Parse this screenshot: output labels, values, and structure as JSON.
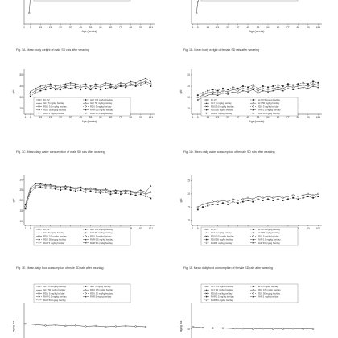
{
  "page": {
    "title": ""
  },
  "chart_data": [
    {
      "id": "fig1a",
      "type": "line",
      "caption": "Fig. 1A. Mean body weight of male SD rats after weaning",
      "xlabel": "Age (weeks)",
      "ylabel": "",
      "x_ticks": [
        "0",
        "5",
        "13",
        "21",
        "29",
        "37",
        "45",
        "53",
        "61",
        "69",
        "77",
        "85",
        "93",
        "101"
      ],
      "y_ticks": [],
      "legend": [
        "DI-UV",
        "GLY 0.5 mg/kg bw/day",
        "GLY 5 mg/kg bw/day",
        "GLY 50 mg/kg bw/day",
        "RDU 0.5 mg/kg bw/day",
        "RDU 5 mg/kg bw/day",
        "RDU 50 mg/kg bw/day",
        "RAR 0.5 mg/kg bw/day",
        "RAR 5 mg/kg bw/day",
        "RAR 50 mg/kg bw/day"
      ],
      "grid": false,
      "series": [
        {
          "name": "DI-UV",
          "x": [
            4,
            5,
            7
          ],
          "y": [
            80,
            200,
            290
          ]
        }
      ]
    },
    {
      "id": "fig1b",
      "type": "line",
      "caption": "Fig. 1B. Mean body weight of female SD rats after weaning",
      "xlabel": "Age (weeks)",
      "ylabel": "",
      "x_ticks": [
        "1",
        "5",
        "13",
        "21",
        "29",
        "37",
        "45",
        "53",
        "61",
        "69",
        "77",
        "85",
        "93",
        "101"
      ],
      "y_ticks": [],
      "legend": [
        "DI-UV",
        "GLY 0.5 mg/kg bw/day",
        "GLY 5 mg/kg bw/day",
        "GLY 50 mg/kg bw/day",
        "RDU 0.5 mg/kg bw/day",
        "RDU 5 mg/kg bw/day",
        "RDU 50 mg/kg bw/day",
        "RAR 0.5 mg/kg bw/day",
        "RAR 5 mg/kg bw/day",
        "RAR 50 mg/kg bw/day"
      ],
      "grid": false,
      "series": [
        {
          "name": "DI-UV",
          "x": [
            4,
            5,
            7
          ],
          "y": [
            80,
            160,
            220
          ]
        }
      ]
    },
    {
      "id": "fig1c",
      "type": "line",
      "caption": "Fig. 1C. Mean daily water consumption of male SD rats after weaning",
      "xlabel": "Age (weeks)",
      "ylabel": "g/d",
      "x_ticks": [
        "1",
        "5",
        "13",
        "21",
        "29",
        "37",
        "45",
        "53",
        "61",
        "69",
        "77",
        "85",
        "93",
        "101"
      ],
      "y_ticks": [
        "20",
        "30",
        "40",
        "50"
      ],
      "ylim": [
        15,
        55
      ],
      "legend": [
        "DI-UV",
        "GLY 0.5 mg/kg bw/day",
        "GLY 5 mg/kg bw/day",
        "GLY 50 mg/kg bw/day",
        "RDU 0.5 mg/kg bw/day",
        "RDU 5 mg/kg bw/day",
        "RDU 50 mg/kg bw/day",
        "RAR 0.5 mg/kg bw/day",
        "RAR 5 mg/kg bw/day",
        "RAR 50 mg/kg bw/day"
      ],
      "grid": false,
      "series": [
        {
          "x": [
            5,
            9,
            13,
            17,
            21,
            25,
            29,
            33,
            37,
            41,
            45,
            49,
            53,
            57,
            61,
            65,
            69,
            73,
            77,
            81,
            85,
            89,
            93,
            97,
            101
          ],
          "y": [
            33,
            36,
            38,
            39,
            40,
            38,
            39,
            40,
            41,
            40,
            39,
            40,
            38,
            40,
            39,
            41,
            40,
            39,
            41,
            40,
            42,
            41,
            43,
            44,
            42
          ]
        },
        {
          "x": [
            5,
            9,
            13,
            17,
            21,
            25,
            29,
            33,
            37,
            41,
            45,
            49,
            53,
            57,
            61,
            65,
            69,
            73,
            77,
            81,
            85,
            89,
            93,
            97,
            101
          ],
          "y": [
            31,
            34,
            36,
            37,
            38,
            37,
            37,
            39,
            38,
            39,
            37,
            38,
            37,
            38,
            37,
            38,
            39,
            38,
            40,
            39,
            41,
            40,
            41,
            43,
            40
          ]
        },
        {
          "x": [
            5,
            9,
            13,
            17,
            21,
            25,
            29,
            33,
            37,
            41,
            45,
            49,
            53,
            57,
            61,
            65,
            69,
            73,
            77,
            81,
            85,
            89,
            93,
            97,
            101
          ],
          "y": [
            35,
            38,
            40,
            41,
            42,
            40,
            41,
            42,
            43,
            42,
            41,
            42,
            40,
            42,
            41,
            43,
            42,
            41,
            43,
            42,
            44,
            43,
            45,
            47,
            44
          ]
        }
      ]
    },
    {
      "id": "fig1d",
      "type": "line",
      "caption": "Fig. 1D. Mean daily water consumption of female SD rats after weaning",
      "xlabel": "Age (weeks)",
      "ylabel": "g/d",
      "x_ticks": [
        "1",
        "5",
        "13",
        "21",
        "29",
        "37",
        "45",
        "53",
        "61",
        "69",
        "77",
        "85",
        "93",
        "101"
      ],
      "y_ticks": [
        "20",
        "30",
        "40",
        "50"
      ],
      "ylim": [
        15,
        55
      ],
      "legend": [
        "DI-UV",
        "GLY 0.5 mg/kg bw/day",
        "GLY 5 mg/kg bw/day",
        "GLY 50 mg/kg bw/day",
        "RDU 0.5 mg/kg bw/day",
        "RDU 5 mg/kg bw/day",
        "RDU 50 mg/kg bw/day",
        "RAR 0.5 mg/kg bw/day",
        "RAR 5 mg/kg bw/day",
        "RAR 50 mg/kg bw/day"
      ],
      "grid": false,
      "series": [
        {
          "x": [
            5,
            9,
            13,
            17,
            21,
            25,
            29,
            33,
            37,
            41,
            45,
            49,
            53,
            57,
            61,
            65,
            69,
            73,
            77,
            81,
            85,
            89,
            93,
            97,
            101
          ],
          "y": [
            30,
            32,
            34,
            35,
            34,
            36,
            35,
            37,
            36,
            38,
            37,
            39,
            36,
            38,
            37,
            38,
            39,
            38,
            40,
            39,
            40,
            41,
            40,
            42,
            41
          ]
        },
        {
          "x": [
            5,
            9,
            13,
            17,
            21,
            25,
            29,
            33,
            37,
            41,
            45,
            49,
            53,
            57,
            61,
            65,
            69,
            73,
            77,
            81,
            85,
            89,
            93,
            97,
            101
          ],
          "y": [
            32,
            34,
            36,
            37,
            36,
            38,
            37,
            39,
            38,
            40,
            39,
            41,
            38,
            40,
            39,
            40,
            41,
            40,
            42,
            41,
            42,
            43,
            42,
            44,
            43
          ]
        },
        {
          "x": [
            5,
            9,
            13,
            17,
            21,
            25,
            29,
            33,
            37,
            41,
            45,
            49,
            53,
            57,
            61,
            65,
            69,
            73,
            77,
            81,
            85,
            89,
            93,
            97,
            101
          ],
          "y": [
            28,
            30,
            32,
            33,
            32,
            34,
            33,
            35,
            34,
            36,
            35,
            37,
            34,
            36,
            35,
            36,
            37,
            36,
            38,
            37,
            38,
            39,
            38,
            40,
            39
          ]
        }
      ]
    },
    {
      "id": "fig1e",
      "type": "line",
      "caption": "Fig. 1E. Mean daily food consumption of male SD rats after weaning",
      "xlabel": "Age (weeks)",
      "ylabel": "g/d",
      "x_ticks": [
        "1",
        "5",
        "13",
        "21",
        "29",
        "37",
        "45",
        "53",
        "61",
        "69",
        "77",
        "85",
        "93",
        "101"
      ],
      "y_ticks": [
        "10",
        "15",
        "20",
        "25",
        "30"
      ],
      "ylim": [
        8,
        32
      ],
      "legend": [
        "DI-UV",
        "GLY 0.5 mg/kg bw/day",
        "GLY 5 mg/kg bw/day",
        "GLY 50 mg/kg bw/day",
        "RDU 0.5 mg/kg bw/day",
        "RDU 5 mg/kg bw/day",
        "RDU 50 mg/kg bw/day",
        "RAR 0.5 mg/kg bw/day",
        "RAR 5 mg/kg bw/day",
        "RAR 50 mg/kg bw/day"
      ],
      "grid": false,
      "series": [
        {
          "x": [
            1,
            5,
            9,
            13,
            17,
            21,
            25,
            29,
            33,
            37,
            41,
            45,
            49,
            53,
            57,
            61,
            65,
            69,
            73,
            77,
            81,
            85,
            89,
            93,
            97,
            101
          ],
          "y": [
            17,
            25,
            27,
            27.5,
            27,
            27,
            26.5,
            26,
            26.5,
            26,
            25.5,
            26,
            25,
            25.5,
            25,
            24.5,
            25,
            24,
            24.5,
            24,
            24.5,
            24,
            23.5,
            24,
            23,
            24
          ]
        },
        {
          "x": [
            1,
            5,
            9,
            13,
            17,
            21,
            25,
            29,
            33,
            37,
            41,
            45,
            49,
            53,
            57,
            61,
            65,
            69,
            73,
            77,
            81,
            85,
            89,
            93,
            97,
            101
          ],
          "y": [
            16,
            24,
            26,
            26.5,
            26,
            26,
            25.5,
            25,
            25.5,
            25,
            24.5,
            25,
            24,
            24.5,
            24,
            23.5,
            24,
            23,
            23.5,
            23,
            23.5,
            23,
            22.5,
            23,
            22,
            21
          ]
        },
        {
          "x": [
            1,
            5,
            9,
            13,
            17,
            21,
            25,
            29,
            33,
            37,
            41,
            45,
            49,
            53,
            57,
            61,
            65,
            69,
            73,
            77,
            81,
            85,
            89,
            93,
            97,
            101
          ],
          "y": [
            18,
            26,
            28,
            28,
            27.5,
            27.5,
            27,
            26.5,
            27,
            26.5,
            26,
            26.5,
            25.5,
            26,
            25.5,
            25,
            25.5,
            24.5,
            25,
            24.5,
            25,
            24.5,
            24,
            25,
            24,
            27
          ]
        }
      ]
    },
    {
      "id": "fig1f",
      "type": "line",
      "caption": "Fig. 1F. Mean daily food consumption of female SD rats after weaning",
      "xlabel": "Age (weeks)",
      "ylabel": "g/d",
      "x_ticks": [
        "1",
        "5",
        "13",
        "21",
        "29",
        "37",
        "45",
        "53",
        "61",
        "69",
        "77",
        "85",
        "93",
        "101"
      ],
      "y_ticks": [
        "10",
        "15",
        "20",
        "25"
      ],
      "ylim": [
        8,
        27
      ],
      "legend": [
        "DI-UV",
        "GLY 0.5 mg/kg bw/day",
        "GLY 5 mg/kg bw/day",
        "GLY 50 mg/kg bw/day",
        "RDU 0.5 mg/kg bw/day",
        "RDU 5 mg/kg bw/day",
        "RDU 50 mg/kg bw/day",
        "RAR 0.5 mg/kg bw/day",
        "RAR 5 mg/kg bw/day",
        "RAR 50 mg/kg bw/day"
      ],
      "grid": false,
      "series": [
        {
          "x": [
            5,
            9,
            13,
            17,
            21,
            25,
            29,
            33,
            37,
            41,
            45,
            49,
            53,
            57,
            61,
            65,
            69,
            73,
            77,
            81,
            85,
            89,
            93,
            97,
            101
          ],
          "y": [
            15,
            16,
            16.5,
            17,
            17,
            17.5,
            17,
            18,
            17.5,
            18,
            18.5,
            18,
            19,
            18.5,
            19,
            18.5,
            19,
            18.5,
            19,
            19.5,
            19,
            19.5,
            20,
            19.5,
            20
          ]
        },
        {
          "x": [
            5,
            9,
            13,
            17,
            21,
            25,
            29,
            33,
            37,
            41,
            45,
            49,
            53,
            57,
            61,
            65,
            69,
            73,
            77,
            81,
            85,
            89,
            93,
            97,
            101
          ],
          "y": [
            14,
            15,
            15.5,
            16,
            16,
            16.5,
            16,
            17,
            16.5,
            17,
            17.5,
            17,
            18,
            17.5,
            18,
            17.5,
            18,
            17.5,
            18,
            18.5,
            18,
            18.5,
            19,
            18.5,
            19
          ]
        }
      ]
    },
    {
      "id": "fig1g",
      "type": "line",
      "caption": "",
      "xlabel": "",
      "ylabel": "mg/kg bw",
      "x_ticks": [],
      "y_ticks": [],
      "ylim": [
        0,
        110
      ],
      "legend": [
        "GLY 0.5 mg/kg bw/day",
        "GLY 5 mg/kg bw/day",
        "GLY 50 mg/kg bw/day",
        "RDU 0.5 mg/kg bw/day",
        "RDU 5 mg/kg bw/day",
        "RDU 50 mg/kg bw/day",
        "RAR 0.5 mg/kg bw/day",
        "RAR 5 mg/kg bw/day",
        "RAR 50 mg/kg bw/day"
      ],
      "grid": false,
      "series": [
        {
          "x": [
            1,
            9,
            17,
            25,
            33,
            41,
            49,
            57,
            65,
            73,
            81,
            89,
            97
          ],
          "y": [
            62,
            60,
            58,
            59,
            57,
            58,
            56,
            57,
            55,
            56,
            57,
            56,
            55
          ]
        },
        {
          "x": [
            1,
            9,
            17,
            25,
            33,
            41,
            49,
            57,
            65,
            73,
            81,
            89,
            97
          ],
          "y": [
            6,
            6,
            5.5,
            5.5,
            5.5,
            5,
            5,
            5,
            5,
            5,
            5,
            5,
            5
          ]
        }
      ]
    },
    {
      "id": "fig1h",
      "type": "line",
      "caption": "",
      "xlabel": "",
      "ylabel": "mg/kg bw",
      "x_ticks": [],
      "y_ticks": [
        "50",
        "5"
      ],
      "ylim": [
        0,
        110
      ],
      "legend": [
        "GLY 0.5 mg/kg bw/day",
        "GLY 5 mg/kg bw/day",
        "GLY 50 mg/kg bw/day",
        "RDU 0.5 mg/kg bw/day",
        "RDU 5 mg/kg bw/day",
        "RDU 50 mg/kg bw/day",
        "RAR 0.5 mg/kg bw/day",
        "RAR 5 mg/kg bw/day",
        "RAR 50 mg/kg bw/day"
      ],
      "grid": false,
      "series": [
        {
          "x": [
            1,
            9,
            17,
            25,
            33,
            41,
            49,
            57,
            65,
            73,
            81,
            89,
            97
          ],
          "y": [
            55,
            53,
            52,
            52,
            51,
            51,
            50,
            51,
            50,
            50,
            51,
            50,
            50
          ]
        },
        {
          "x": [
            1,
            9,
            17,
            25,
            33,
            41,
            49,
            57,
            65,
            73,
            81,
            89,
            97
          ],
          "y": [
            6,
            5.5,
            5.5,
            5,
            5,
            5,
            5,
            5,
            5,
            5,
            5,
            5,
            5
          ]
        }
      ]
    }
  ]
}
